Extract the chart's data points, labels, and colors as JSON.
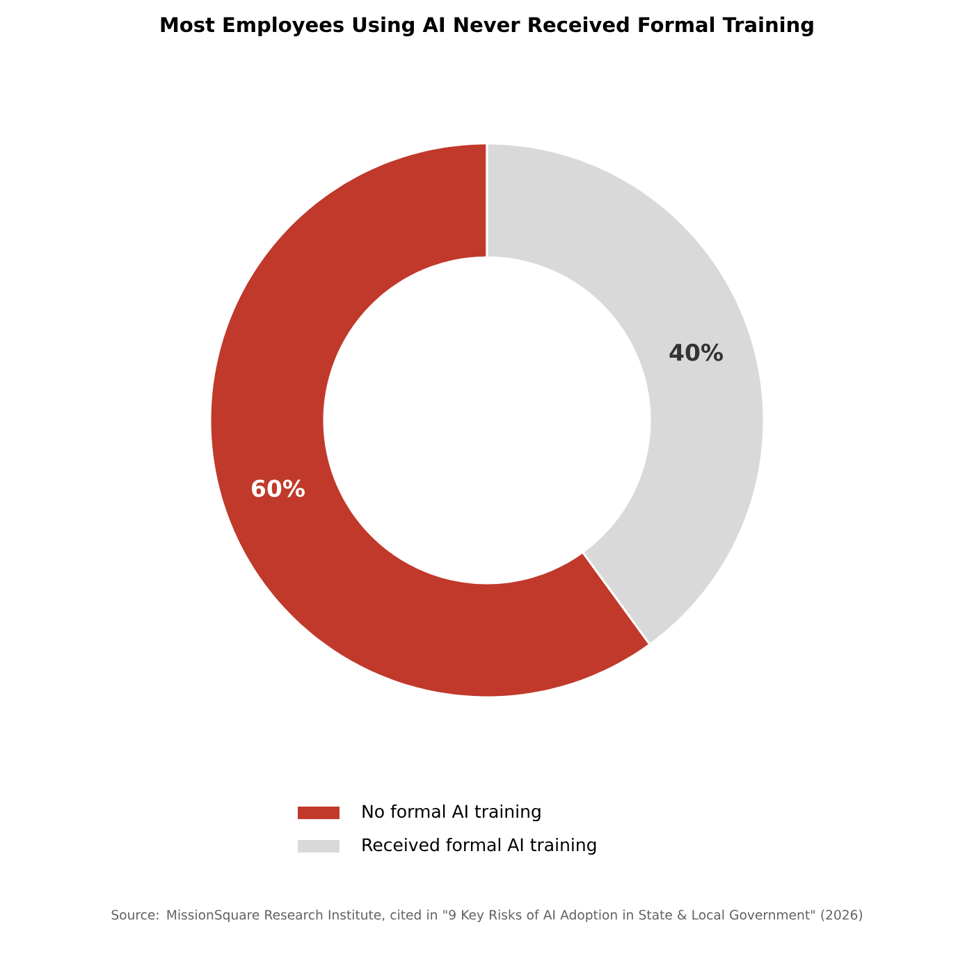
{
  "chart_data": {
    "type": "donut",
    "title": "Most Employees Using AI Never Received Formal Training",
    "categories": [
      "No formal AI training",
      "Received formal AI training"
    ],
    "values": [
      60,
      40
    ],
    "colors": [
      "#c0392b",
      "#d9d9d9"
    ],
    "value_labels": [
      "60%",
      "40%"
    ],
    "legend": "bottom",
    "annotations": [
      "Source: MissionSquare Research Institute, cited in \"9 Key Risks of AI Adoption in State & Local Government\" (2026)"
    ]
  }
}
